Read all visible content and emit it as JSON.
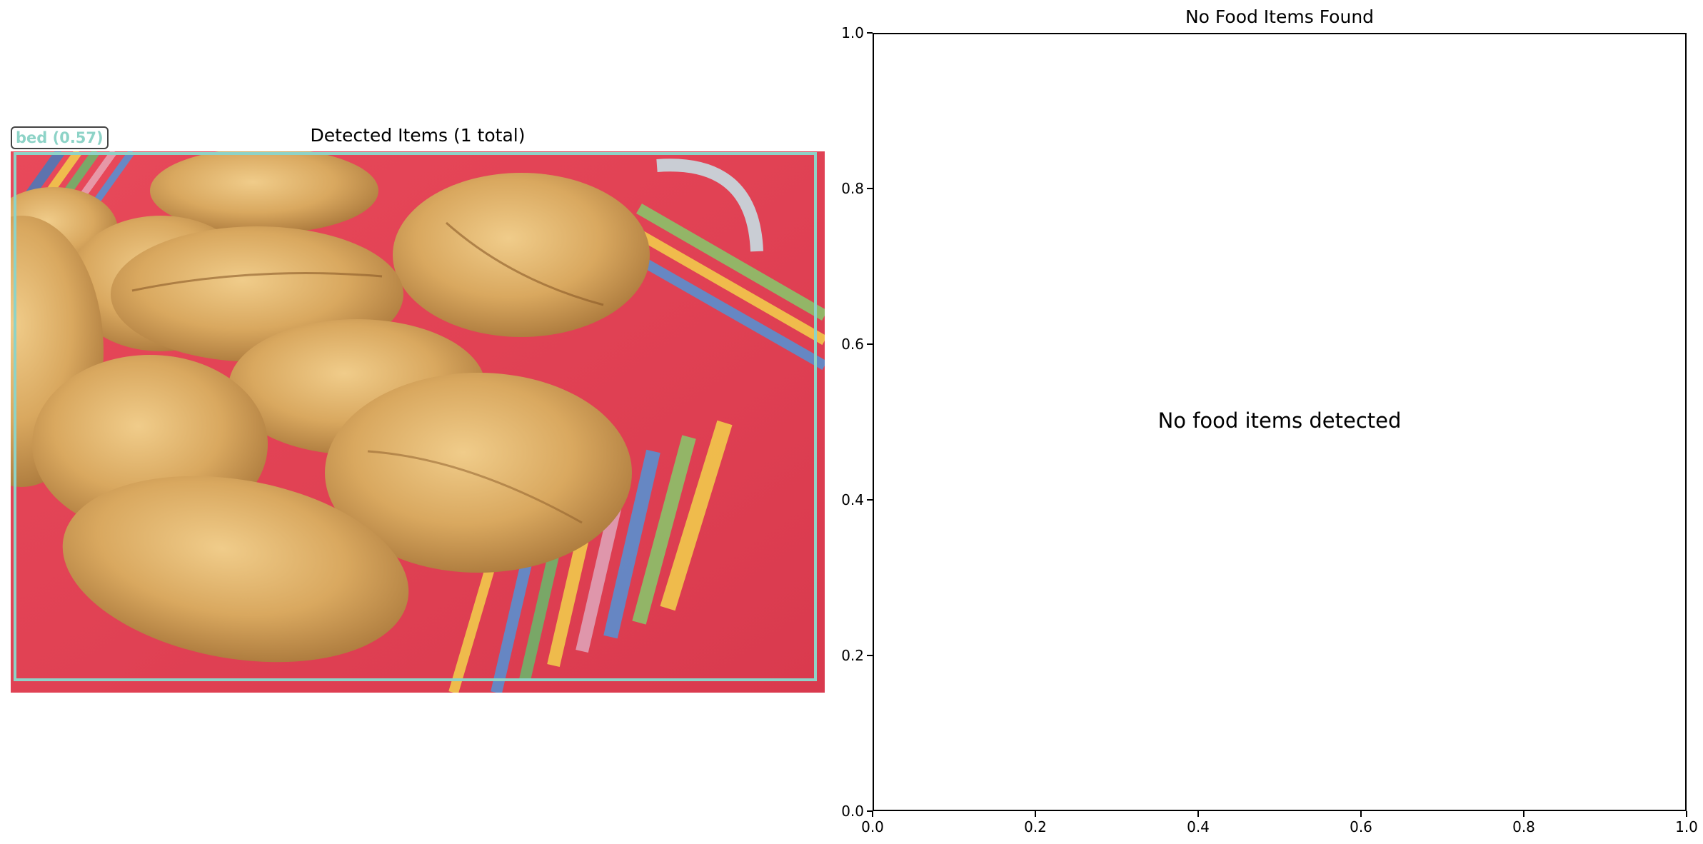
{
  "left_panel": {
    "title": "Detected Items (1 total)",
    "detection": {
      "label": "bed (0.57)",
      "color": "#8dd3c7"
    }
  },
  "chart_data": {
    "type": "scatter",
    "title": "No Food Items Found",
    "annotation": "No food items detected",
    "xlim": [
      0.0,
      1.0
    ],
    "ylim": [
      0.0,
      1.0
    ],
    "x_ticks": [
      "0.0",
      "0.2",
      "0.4",
      "0.6",
      "0.8",
      "1.0"
    ],
    "y_ticks": [
      "0.0",
      "0.2",
      "0.4",
      "0.6",
      "0.8",
      "1.0"
    ],
    "series": [],
    "grid": false
  }
}
